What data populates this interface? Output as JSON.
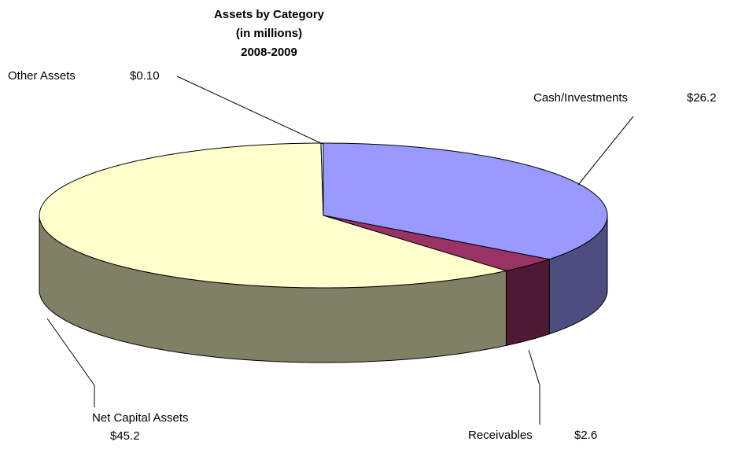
{
  "chart_data": {
    "type": "pie3d",
    "title": "Assets by Category",
    "subtitle": [
      "(in millions)",
      "2008-2009"
    ],
    "categories": [
      "Cash/Investments",
      "Receivables",
      "Net Capital Assets",
      "Other Assets"
    ],
    "values": [
      26.2,
      2.6,
      45.2,
      0.1
    ],
    "value_labels": [
      "$26.2",
      "$2.6",
      "$45.2",
      "$0.10"
    ],
    "colors": [
      "#9999ff",
      "#993366",
      "#ffffcc",
      "#ccffff"
    ],
    "side_colors": [
      "#4d4d80",
      "#4d1933",
      "#808066",
      "#668080"
    ]
  }
}
